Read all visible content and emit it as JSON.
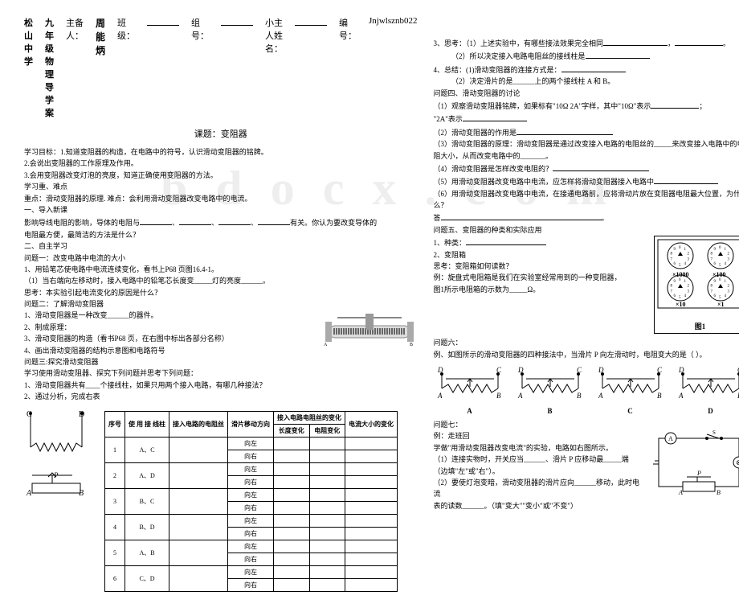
{
  "header": {
    "school": "松山中学",
    "grade": "九年级物理导学案",
    "editor_label": "主备人：",
    "editor": "周能炳",
    "class_label": "班级：",
    "group_label": "组号：",
    "name_label": "小主人姓名：",
    "code_label": "编号：",
    "code": "Jnjwlsznb022"
  },
  "title": "课题：变阻器",
  "left": {
    "goal_label": "学习目标：",
    "goal1": "1.知道变阻器的构造，在电路中的符号，认识滑动变阻器的铭牌。",
    "goal2": "2.会说出变阻器的工作原理及作用。",
    "goal3": "3.会用变阻器改变灯泡的亮度，知道正确使用变阻器的方法。",
    "diff_label": "学习重、难点",
    "diff1": "重点：滑动变阻器的原理.     难点：会利用滑动变阻器改变电路中的电流。",
    "intro": "一、导入新课",
    "intro_text": "影响导线电阻的影响，导体的电阻与",
    "intro_text2": "有关。你认为要改变导体的",
    "intro_text3": "电阻最方便，最简洁的方法是什么？",
    "self": "二、自主学习",
    "q1": "问题一：改变电路中电流的大小",
    "q1_1": "1、用铅笔芯使电路中电流连续变化，看书上P68 页图16.4-1。",
    "q1_2": "（1）当右端向左移动时，接入电路中的铅笔芯长度变_____灯的亮度______。",
    "q1_3": "思考：本实验引起电流变化的原因是什么？",
    "q2": "问题二：了解滑动变阻器",
    "q2_1": "1、滑动变阻器是一种改变______的器件。",
    "q2_2": "2、制成原理：",
    "q2_3": "3、滑动变阻器的构造（看书P68 页，在右图中标出各部分名称）",
    "q2_4": "4、画出滑动变阻器的结构示意图和电路符号",
    "q3": "问题三:探究滑动变阻器",
    "q3_1": "学习使用滑动变阻器、探究下列问题并思考下列问题：",
    "q3_2": "1、滑动变阻器共有____个接线柱，如果只用两个接入电路，有哪几种接法？",
    "q3_3": "2、通过分析，完成右表"
  },
  "table": {
    "headers": [
      "序号",
      "使 用 接 线柱",
      "接入电路的电阻丝",
      "滑片移动方向",
      "长度变化",
      "电阻变化",
      "电流大小的变化"
    ],
    "sub_header": "接入电路电阻丝的变化",
    "rows": [
      {
        "n": "1",
        "t": "A、C",
        "d1": "向左",
        "d2": "向右"
      },
      {
        "n": "2",
        "t": "A、D",
        "d1": "向左",
        "d2": "向右"
      },
      {
        "n": "3",
        "t": "B、C",
        "d1": "向左",
        "d2": "向右"
      },
      {
        "n": "4",
        "t": "B、D",
        "d1": "向左",
        "d2": "向右"
      },
      {
        "n": "5",
        "t": "A、B",
        "d1": "向左",
        "d2": "向右"
      },
      {
        "n": "6",
        "t": "C、D",
        "d1": "向左",
        "d2": "向右"
      }
    ]
  },
  "right": {
    "q3_think": "3、思考：（1）上述实验中，有哪些接法效果完全相同",
    "q3_think2": "（2）所以决定接入电路电阻丝的接线柱是",
    "q4_sum": "4、总结：(1)滑动变阻器的连接方式是：",
    "q4_sum2": "（2）决定滑片的是______上的两个接线柱 A 和 B。",
    "q4": "问题四、滑动变阻器的讨论",
    "q4_1": "（1）观察滑动变阻器铭牌，如果标有\"10Ω 2A\"字样，其中\"10Ω\"表示",
    "q4_1b": "\"2A\"表示",
    "q4_2": "（2）滑动变阻器的作用是",
    "q4_3": "（3）滑动变阻器的原理：滑动变阻器是通过改变接入电路的电阻丝的_____来改变接入电路中的电阻大小，从而改变电路中的_______。",
    "q4_4": "（4）滑动变阻器是怎样改变电阻的？",
    "q4_5": "（5）用滑动变阻器改变电路中电流，应怎样将滑动变阻器接入电路中",
    "q4_6": "（6）用滑动变阻器改变电路中电流，在接通电路前，应将滑动片放在变阻器电阻最大位置，为什么？",
    "q4_ans": "答",
    "q5": "问题五、变阻器的种类和实际应用",
    "q5_1": "1、种类：",
    "q5_2": "2、变阻箱",
    "q5_think": "思考：变阻箱如何读数？",
    "q5_eg": "例：旋盘式电阻箱是我们在实验室经常用到的一种变阻器，",
    "q5_eg2": "图1所示电阻箱的示数为_____Ω。",
    "fig1": "图1",
    "dial_labels": [
      "×1000",
      "×100",
      "×10",
      "×1"
    ],
    "q6": "问题六：",
    "q6_eg": "例、如图所示的滑动变阻器的四种接法中，当滑片 P 向左滑动时，电阻变大的是（    ）。",
    "options": [
      "A",
      "B",
      "C",
      "D"
    ],
    "q7": "问题七：",
    "q7_eg": "例：走班回",
    "q7_1": "学做\"用滑动变阻器改变电流\"的实验，电路如右图所示。",
    "q7_2": "（1）连接实物时，开关应当______、滑片 P 应移动最_____端",
    "q7_3": "（边填\"左\"或\"右\"）。",
    "q7_4": "（2）要使灯泡变暗，滑动变阻器的滑片应向______移动，此时电流",
    "q7_5": "表的读数______。（填\"变大\"\"变小\"或\"不变\"）"
  }
}
